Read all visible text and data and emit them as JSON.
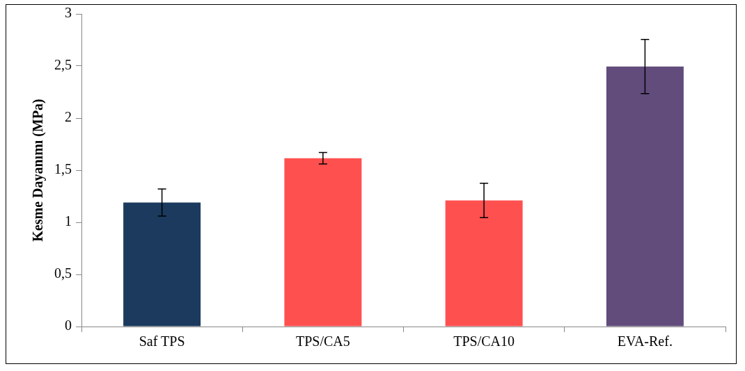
{
  "chart_data": {
    "type": "bar",
    "ylabel": "Kesme Dayanımı (MPa)",
    "categories": [
      "Saf TPS",
      "TPS/CA5",
      "TPS/CA10",
      "EVA-Ref."
    ],
    "values": [
      1.19,
      1.615,
      1.21,
      2.495
    ],
    "errors": [
      0.13,
      0.055,
      0.165,
      0.26
    ],
    "colors": [
      "#1b3a5e",
      "#ff5050",
      "#ff5050",
      "#614c7c"
    ],
    "ylim": [
      0,
      3
    ],
    "yticks": [
      0,
      {
        "value": 0.5,
        "label": "0,5"
      },
      1,
      {
        "value": 1.5,
        "label": "1,5"
      },
      2,
      {
        "value": 2.5,
        "label": "2,5"
      },
      3
    ],
    "grid": false,
    "legend": false
  }
}
